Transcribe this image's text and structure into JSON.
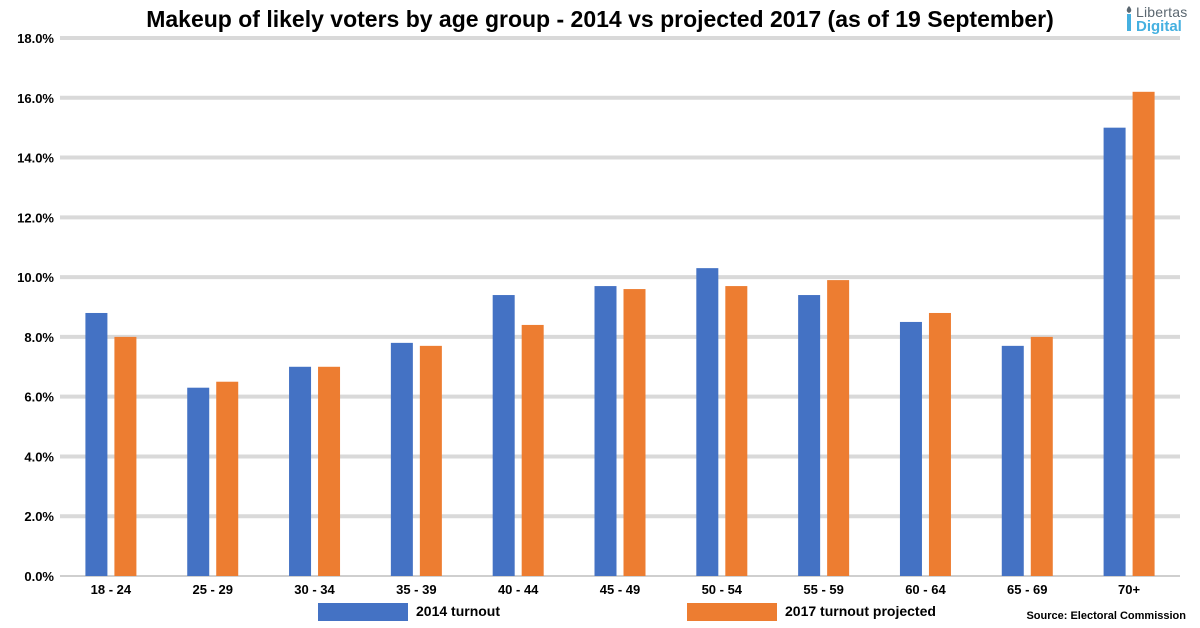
{
  "brand": {
    "line1": "Libertas",
    "line2": "Digital"
  },
  "source": "Source: Electoral Commission",
  "colors": {
    "series1": "#4472c4",
    "series2": "#ed7d31",
    "grid": "#d9d9d9",
    "axis": "#bfbfbf"
  },
  "chart_data": {
    "type": "bar",
    "title": "Makeup of likely voters by age group - 2014 vs projected 2017 (as of 19 September)",
    "xlabel": "",
    "ylabel": "",
    "ylim": [
      0,
      18
    ],
    "y_tick_labels": [
      "0.0%",
      "2.0%",
      "4.0%",
      "6.0%",
      "8.0%",
      "10.0%",
      "12.0%",
      "14.0%",
      "16.0%",
      "18.0%"
    ],
    "grid": true,
    "legend_position": "bottom",
    "categories": [
      "18 - 24",
      "25 - 29",
      "30 - 34",
      "35 - 39",
      "40 - 44",
      "45 - 49",
      "50 - 54",
      "55 - 59",
      "60 - 64",
      "65 - 69",
      "70+"
    ],
    "series": [
      {
        "name": "2014 turnout",
        "values": [
          8.8,
          6.3,
          7.0,
          7.8,
          9.4,
          9.7,
          10.3,
          9.4,
          8.5,
          7.7,
          15.0
        ]
      },
      {
        "name": "2017 turnout projected",
        "values": [
          8.0,
          6.5,
          7.0,
          7.7,
          8.4,
          9.6,
          9.7,
          9.9,
          8.8,
          8.0,
          16.2
        ]
      }
    ]
  }
}
